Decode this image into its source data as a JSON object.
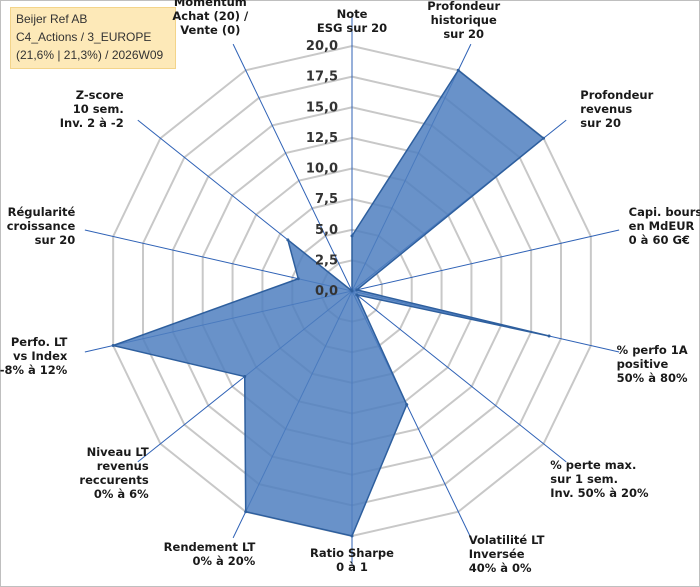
{
  "info": {
    "line1": "Beijer Ref AB",
    "line2": "C4_Actions / 3_EUROPE",
    "line3": "(21,6% | 21,3%) / 2026W09"
  },
  "colors": {
    "fill": "#4f7fbf",
    "stroke": "#2e5f9e",
    "grid": "#c8c8c8",
    "spoke": "#2f62b6"
  },
  "chart_data": {
    "type": "radar",
    "title": "",
    "range": [
      0,
      20
    ],
    "ticks": [
      "0,0",
      "2,5",
      "5,0",
      "7,5",
      "10,0",
      "12,5",
      "15,0",
      "17,5",
      "20,0"
    ],
    "axes": [
      {
        "label": [
          "Note",
          "ESG sur 20"
        ],
        "value": 4.5
      },
      {
        "label": [
          "Profondeur",
          "historique",
          "sur 20"
        ],
        "value": 20
      },
      {
        "label": [
          "Profondeur",
          "revenus",
          "sur 20"
        ],
        "value": 20
      },
      {
        "label": [
          "Capi. bours.",
          "en MdEUR",
          "0 à 60 G€"
        ],
        "value": 0.4
      },
      {
        "label": [
          "% perfo 1A",
          "positive",
          "50% à 80%"
        ],
        "value": 16.5
      },
      {
        "label": [
          "% perte max.",
          "sur 1 sem.",
          "Inv. 50% à 20%"
        ],
        "value": 0.5
      },
      {
        "label": [
          "Volatilité LT",
          "Inversée",
          "40% à 0%"
        ],
        "value": 10.3
      },
      {
        "label": [
          "Ratio Sharpe",
          "0 à 1"
        ],
        "value": 20
      },
      {
        "label": [
          "Rendement LT",
          "0% à 20%"
        ],
        "value": 20
      },
      {
        "label": [
          "Niveau LT",
          "revenus",
          "reccurents",
          "0% à 6%"
        ],
        "value": 11.2
      },
      {
        "label": [
          "Perfo. LT",
          "vs Index",
          "-8% à 12%"
        ],
        "value": 20
      },
      {
        "label": [
          "Régularité",
          "croissance",
          "sur 20"
        ],
        "value": 4.5
      },
      {
        "label": [
          "Z-score",
          "10 sem.",
          "Inv. 2 à -2"
        ],
        "value": 6.7
      },
      {
        "label": [
          "Momentum",
          "Achat (20) /",
          "Vente (0)"
        ],
        "value": 0
      }
    ]
  }
}
